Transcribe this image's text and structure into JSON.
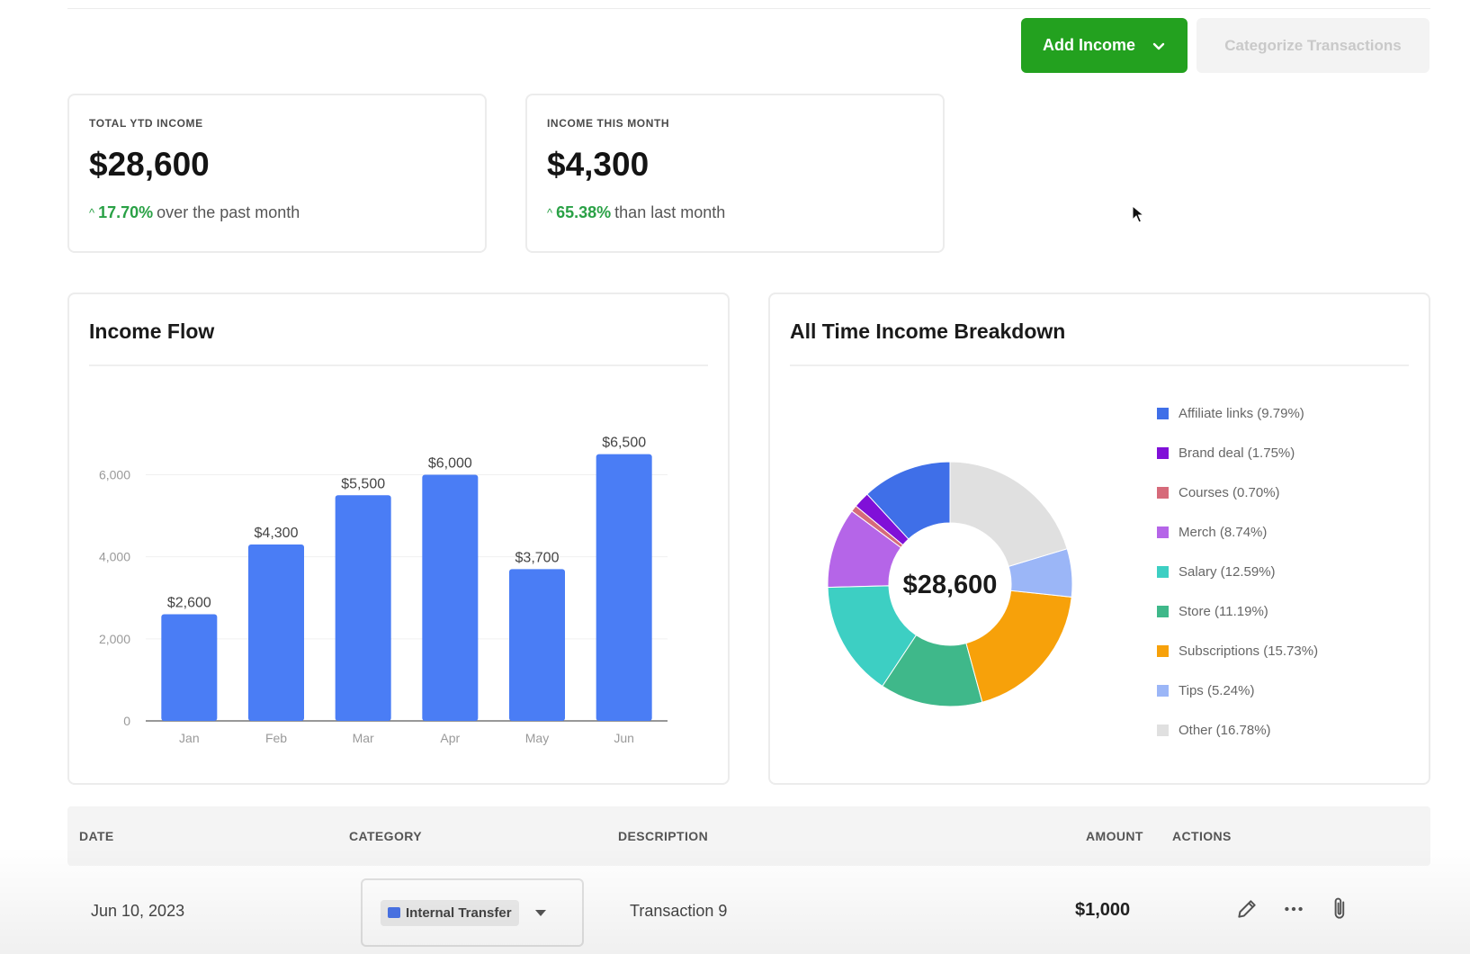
{
  "header": {
    "add_income_label": "Add Income",
    "categorize_label": "Categorize Transactions"
  },
  "stats": [
    {
      "label": "TOTAL YTD INCOME",
      "value": "$28,600",
      "change_pct": "17.70%",
      "change_text": "over the past month"
    },
    {
      "label": "INCOME THIS MONTH",
      "value": "$4,300",
      "change_pct": "65.38%",
      "change_text": "than last month"
    }
  ],
  "income_flow": {
    "title": "Income Flow"
  },
  "breakdown": {
    "title": "All Time Income Breakdown",
    "center_label": "$28,600"
  },
  "chart_data": [
    {
      "type": "bar",
      "title": "Income Flow",
      "categories": [
        "Jan",
        "Feb",
        "Mar",
        "Apr",
        "May",
        "Jun"
      ],
      "values": [
        2600,
        4300,
        5500,
        6000,
        3700,
        6500
      ],
      "value_labels": [
        "$2,600",
        "$4,300",
        "$5,500",
        "$6,000",
        "$3,700",
        "$6,500"
      ],
      "yticks": [
        "0",
        "2,000",
        "4,000",
        "6,000"
      ],
      "ylim": [
        0,
        6800
      ],
      "grid": true,
      "color": "#4a7df5"
    },
    {
      "type": "pie",
      "title": "All Time Income Breakdown",
      "center_label": "$28,600",
      "slices": [
        {
          "name": "Affiliate links (9.79%)",
          "value": 9.79,
          "color": "#3f6fe8"
        },
        {
          "name": "Brand deal (1.75%)",
          "value": 1.75,
          "color": "#8010d8"
        },
        {
          "name": "Courses (0.70%)",
          "value": 0.7,
          "color": "#d66a7a"
        },
        {
          "name": "Merch (8.74%)",
          "value": 8.74,
          "color": "#b565e8"
        },
        {
          "name": "Salary (12.59%)",
          "value": 12.59,
          "color": "#3dcfc3"
        },
        {
          "name": "Store (11.19%)",
          "value": 11.19,
          "color": "#3fb88a"
        },
        {
          "name": "Subscriptions (15.73%)",
          "value": 15.73,
          "color": "#f7a10a"
        },
        {
          "name": "Tips (5.24%)",
          "value": 5.24,
          "color": "#9bb6f7"
        },
        {
          "name": "Other (16.78%)",
          "value": 16.78,
          "color": "#e0e0e0"
        }
      ]
    }
  ],
  "table": {
    "headers": {
      "date": "DATE",
      "category": "CATEGORY",
      "description": "DESCRIPTION",
      "amount": "AMOUNT",
      "actions": "ACTIONS"
    },
    "rows": [
      {
        "date": "Jun 10, 2023",
        "category": "Internal Transfer",
        "description": "Transaction 9",
        "amount": "$1,000"
      }
    ]
  }
}
